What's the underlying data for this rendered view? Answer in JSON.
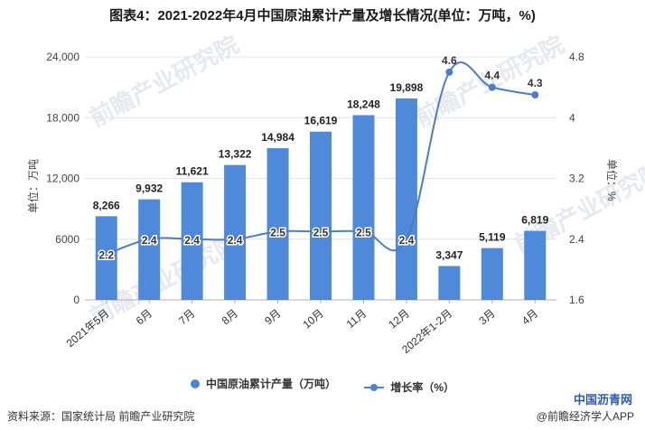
{
  "title": "图表4：2021-2022年4月中国原油累计产量及增长情况(单位：万吨，%)",
  "source": "资料来源：国家统计局 前瞻产业研究院",
  "brand": "@前瞻经济学人APP",
  "corner_logo": "中国沥青网",
  "watermark": "前瞻产业研究院",
  "colors": {
    "bar": "#4f89da",
    "line": "#4a7fc7",
    "grid": "#e4e4e4"
  },
  "chart_data": {
    "type": "bar",
    "categories": [
      "2021年5月",
      "6月",
      "7月",
      "8月",
      "9月",
      "10月",
      "11月",
      "12月",
      "2022年1-2月",
      "3月",
      "4月"
    ],
    "series": [
      {
        "name": "中国原油累计产量（万吨）",
        "type": "bar",
        "axis": "left",
        "values": [
          8266,
          9932,
          11621,
          13322,
          14984,
          16619,
          18248,
          19898,
          3347,
          5119,
          6819
        ],
        "labels": [
          "8,266",
          "9,932",
          "11,621",
          "13,322",
          "14,984",
          "16,619",
          "18,248",
          "19,898",
          "3,347",
          "5,119",
          "6,819"
        ]
      },
      {
        "name": "增长率（%）",
        "type": "line",
        "axis": "right",
        "values": [
          2.2,
          2.4,
          2.4,
          2.4,
          2.5,
          2.5,
          2.5,
          2.4,
          4.6,
          4.4,
          4.3
        ],
        "labels": [
          "2.2",
          "2.4",
          "2.4",
          "2.4",
          "2.5",
          "2.5",
          "2.5",
          "2.4",
          "4.6",
          "4.4",
          "4.3"
        ]
      }
    ],
    "ylabel": "单位：万吨",
    "y2label": "单位：%",
    "ylim": [
      0,
      24000
    ],
    "y2lim": [
      1.6,
      4.8
    ],
    "yticks": [
      "0",
      "6000",
      "12,000",
      "18,000",
      "24,000"
    ],
    "y2ticks": [
      "1.6",
      "2.4",
      "3.2",
      "4",
      "4.8"
    ],
    "legend_position": "bottom"
  }
}
